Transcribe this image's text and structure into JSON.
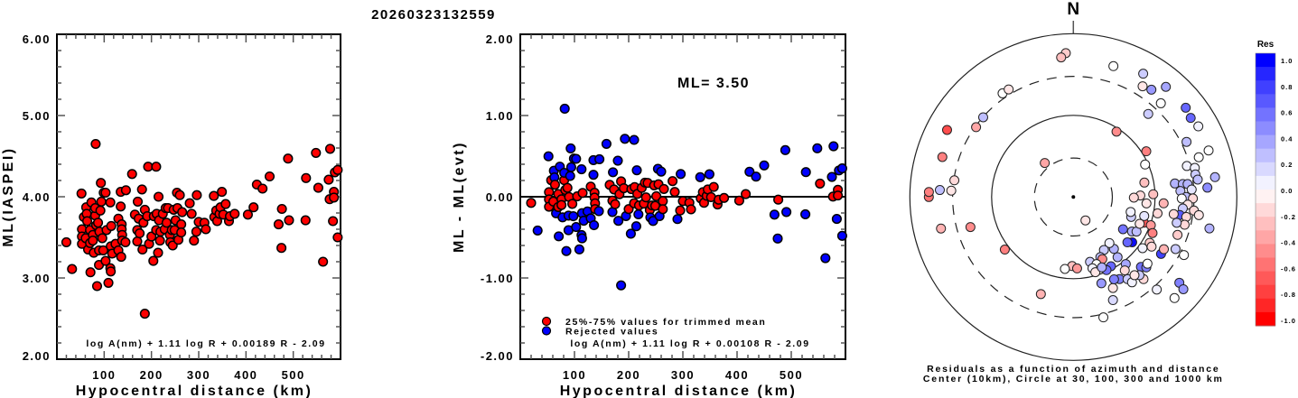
{
  "title": "20260323132559",
  "chart_data": [
    {
      "type": "scatter",
      "title": "",
      "xlabel": "Hypocentral distance (km)",
      "ylabel": "ML(IASPEI)",
      "xlim": [
        0,
        600
      ],
      "ylim": [
        2,
        6
      ],
      "xticks": [
        100,
        200,
        300,
        400,
        500
      ],
      "xtick_labels": [
        "100",
        "200",
        "300",
        "400",
        "500"
      ],
      "yticks": [
        2,
        3,
        4,
        5,
        6
      ],
      "ytick_labels": [
        "2.00",
        "3.00",
        "4.00",
        "5.00",
        "6.00"
      ],
      "formula": "log A(nm) + 1.11 log R + 0.00189 R - 2.09",
      "distance_coef": 0.00189,
      "marker_color": "#ff0000",
      "points_dist_ml": [
        [
          20,
          3.44
        ],
        [
          32,
          3.11
        ],
        [
          52,
          4.04
        ],
        [
          53,
          3.6
        ],
        [
          53,
          3.51
        ],
        [
          53,
          3.42
        ],
        [
          57,
          3.75
        ],
        [
          62,
          3.87
        ],
        [
          63,
          3.79
        ],
        [
          64,
          3.7
        ],
        [
          61,
          3.49
        ],
        [
          66,
          3.35
        ],
        [
          70,
          3.43
        ],
        [
          70,
          3.59
        ],
        [
          71,
          3.07
        ],
        [
          73,
          3.93
        ],
        [
          76,
          3.53
        ],
        [
          76,
          3.46
        ],
        [
          78,
          3.31
        ],
        [
          81,
          3.77
        ],
        [
          81,
          3.86
        ],
        [
          82,
          4.65
        ],
        [
          83,
          3.65
        ],
        [
          85,
          2.9
        ],
        [
          87,
          3.68
        ],
        [
          89,
          3.34
        ],
        [
          89,
          3.16
        ],
        [
          90,
          3.57
        ],
        [
          92,
          3.83
        ],
        [
          93,
          4.17
        ],
        [
          94,
          3.94
        ],
        [
          96,
          3.49
        ],
        [
          98,
          3.34
        ],
        [
          99,
          4.05
        ],
        [
          103,
          4.05
        ],
        [
          103,
          3.21
        ],
        [
          105,
          3.59
        ],
        [
          109,
          2.94
        ],
        [
          113,
          3.93
        ],
        [
          113,
          3.12
        ],
        [
          114,
          3.39
        ],
        [
          114,
          3.08
        ],
        [
          115,
          3.64
        ],
        [
          117,
          3.3
        ],
        [
          124,
          3.42
        ],
        [
          130,
          3.73
        ],
        [
          130,
          3.34
        ],
        [
          135,
          3.88
        ],
        [
          135,
          4.06
        ],
        [
          136,
          3.26
        ],
        [
          137,
          3.66
        ],
        [
          137,
          3.6
        ],
        [
          138,
          3.53
        ],
        [
          138,
          3.46
        ],
        [
          145,
          3.44
        ],
        [
          146,
          4.08
        ],
        [
          159,
          4.28
        ],
        [
          165,
          3.78
        ],
        [
          170,
          3.45
        ],
        [
          170,
          3.59
        ],
        [
          171,
          3.94
        ],
        [
          173,
          3.73
        ],
        [
          175,
          3.55
        ],
        [
          180,
          4.09
        ],
        [
          181,
          3.35
        ],
        [
          183,
          3.68
        ],
        [
          186,
          2.56
        ],
        [
          186,
          3.84
        ],
        [
          191,
          3.76
        ],
        [
          193,
          4.37
        ],
        [
          195,
          3.42
        ],
        [
          200,
          3.51
        ],
        [
          204,
          3.21
        ],
        [
          205,
          3.76
        ],
        [
          210,
          4.37
        ],
        [
          210,
          3.59
        ],
        [
          211,
          3.79
        ],
        [
          214,
          3.31
        ],
        [
          215,
          4.0
        ],
        [
          216,
          3.71
        ],
        [
          218,
          3.46
        ],
        [
          219,
          3.57
        ],
        [
          224,
          3.79
        ],
        [
          228,
          3.6
        ],
        [
          230,
          3.86
        ],
        [
          232,
          3.68
        ],
        [
          235,
          3.86
        ],
        [
          239,
          3.53
        ],
        [
          240,
          3.44
        ],
        [
          243,
          3.59
        ],
        [
          245,
          3.4
        ],
        [
          247,
          3.84
        ],
        [
          249,
          3.59
        ],
        [
          251,
          3.71
        ],
        [
          254,
          4.05
        ],
        [
          255,
          3.86
        ],
        [
          257,
          3.47
        ],
        [
          260,
          4.02
        ],
        [
          263,
          3.66
        ],
        [
          263,
          3.56
        ],
        [
          265,
          3.81
        ],
        [
          281,
          3.92
        ],
        [
          285,
          3.79
        ],
        [
          290,
          3.46
        ],
        [
          295,
          3.57
        ],
        [
          296,
          4.02
        ],
        [
          300,
          3.69
        ],
        [
          312,
          3.68
        ],
        [
          315,
          3.6
        ],
        [
          332,
          4.01
        ],
        [
          333,
          3.75
        ],
        [
          337,
          3.83
        ],
        [
          339,
          3.7
        ],
        [
          344,
          3.79
        ],
        [
          346,
          3.87
        ],
        [
          349,
          4.06
        ],
        [
          352,
          3.78
        ],
        [
          357,
          3.91
        ],
        [
          364,
          3.7
        ],
        [
          366,
          3.76
        ],
        [
          376,
          3.79
        ],
        [
          404,
          3.78
        ],
        [
          416,
          3.87
        ],
        [
          423,
          4.15
        ],
        [
          435,
          4.1
        ],
        [
          450,
          4.25
        ],
        [
          469,
          3.66
        ],
        [
          475,
          3.37
        ],
        [
          476,
          3.85
        ],
        [
          489,
          4.47
        ],
        [
          491,
          3.71
        ],
        [
          526,
          3.71
        ],
        [
          527,
          4.23
        ],
        [
          548,
          4.54
        ],
        [
          553,
          4.11
        ],
        [
          563,
          3.2
        ],
        [
          575,
          4.21
        ],
        [
          578,
          4.59
        ],
        [
          577,
          3.97
        ],
        [
          584,
          3.7
        ],
        [
          586,
          4.06
        ],
        [
          586,
          3.99
        ],
        [
          588,
          4.3
        ],
        [
          594,
          4.33
        ],
        [
          594,
          3.5
        ]
      ]
    },
    {
      "type": "scatter",
      "xlabel": "Hypocentral distance (km)",
      "ylabel": "ML - ML(evt)",
      "xlim": [
        0,
        600
      ],
      "ylim": [
        -2,
        2
      ],
      "xticks": [
        100,
        200,
        300,
        400,
        500
      ],
      "xtick_labels": [
        "100",
        "200",
        "300",
        "400",
        "500"
      ],
      "yticks": [
        -2,
        -1,
        0,
        1,
        2
      ],
      "ytick_labels": [
        "-2.00",
        "-1.00",
        "0.00",
        "1.00",
        "2.00"
      ],
      "ml_label": "ML= 3.50",
      "ml_value": 3.5,
      "formula": "log A(nm) + 1.11 log R + 0.00108 R - 2.09",
      "distance_coef": 0.00108,
      "legend": [
        {
          "label": "25%-75% values for trimmed mean",
          "color": "#ff0000"
        },
        {
          "label": "Rejected values",
          "color": "#0000ff"
        }
      ],
      "legend_position": "bottom-left"
    },
    {
      "type": "scatter",
      "projection": "polar",
      "north_label": "N",
      "caption_line1": "Residuals as a function of azimuth and distance",
      "caption_line2": "Center (10km), Circle at 30, 100, 300 and 1000 km",
      "center_km": 10,
      "rings_km": [
        30,
        100,
        300,
        1000
      ],
      "colorbar": {
        "title": "Res",
        "labels": [
          "1.0",
          "0.8",
          "0.6",
          "0.4",
          "0.2",
          "0.0",
          "-0.2",
          "-0.4",
          "-0.6",
          "-0.8",
          "-1.0"
        ],
        "min": -1.0,
        "max": 1.0,
        "steps": 20,
        "positive_color": "#0000ff",
        "zero_color": "#ffffff",
        "negative_color": "#ff0000"
      },
      "points_az_dist_res": [
        [
          357,
          581,
          -0.2
        ],
        [
          355,
          520,
          -0.25
        ],
        [
          17,
          474,
          0
        ],
        [
          29.5,
          543,
          0.2
        ],
        [
          32,
          397,
          -0.1
        ],
        [
          36,
          421,
          0.4
        ],
        [
          40,
          576,
          0.35
        ],
        [
          43,
          371,
          0
        ],
        [
          42,
          234,
          0.2
        ],
        [
          51.5,
          571,
          0.6
        ],
        [
          56,
          539,
          0.6
        ],
        [
          60.5,
          571,
          0.05
        ],
        [
          64,
          347,
          0.25
        ],
        [
          71,
          562,
          0
        ],
        [
          72.4,
          407,
          0
        ],
        [
          82,
          562,
          0.3
        ],
        [
          86,
          440,
          0.45
        ],
        [
          103,
          511,
          0.3
        ],
        [
          129,
          466,
          0.5
        ],
        [
          130,
          571,
          0.4
        ],
        [
          135,
          562,
          0
        ],
        [
          138,
          335,
          0.05
        ],
        [
          166,
          330,
          0
        ],
        [
          159,
          225,
          0.15
        ],
        [
          156.5,
          164,
          -0.1
        ],
        [
          162,
          129,
          0.4
        ],
        [
          198.5,
          179,
          -0.3
        ],
        [
          232.5,
          114,
          -0.5
        ],
        [
          253.7,
          205,
          -0.45
        ],
        [
          256.6,
          462,
          -0.3
        ],
        [
          270,
          586,
          -0.55
        ],
        [
          272,
          586,
          -0.5
        ],
        [
          273,
          432,
          0.25
        ],
        [
          273,
          313,
          -0.1
        ],
        [
          278,
          295,
          -0.15
        ],
        [
          287,
          474,
          -0.5
        ],
        [
          298,
          562,
          -0.7
        ],
        [
          305.7,
          292,
          -0.35
        ],
        [
          311.5,
          297,
          0.25
        ],
        [
          325.7,
          344,
          0
        ],
        [
          329,
          344,
          -0.1
        ],
        [
          320,
          35,
          -0.35
        ],
        [
          152.6,
          21,
          -0.1
        ],
        [
          33.4,
          91,
          -0.45
        ],
        [
          57.9,
          113,
          -0.5
        ],
        [
          65.6,
          92,
          0
        ],
        [
          78.5,
          77,
          -0.25
        ],
        [
          88,
          95,
          -0.25
        ],
        [
          88.7,
          66,
          -0.15
        ],
        [
          90.6,
          55,
          -0.15
        ],
        [
          95,
          79,
          -0.1
        ],
        [
          94,
          128,
          -0.3
        ],
        [
          101,
          112,
          -0.15
        ],
        [
          110,
          83,
          -0.65
        ],
        [
          110,
          102,
          -0.4
        ],
        [
          114.5,
          116,
          -0.5
        ],
        [
          127.6,
          81,
          0.95
        ],
        [
          130,
          73,
          0.6
        ],
        [
          123,
          53,
          0.55
        ],
        [
          120.5,
          68,
          0.3
        ],
        [
          118.7,
          76,
          0.25
        ],
        [
          109,
          56,
          0.2
        ],
        [
          105,
          79,
          0.1
        ],
        [
          104.6,
          53,
          0.05
        ],
        [
          112,
          75,
          -0.1
        ],
        [
          123,
          190,
          0.75
        ],
        [
          120,
          190,
          -0.3
        ],
        [
          117,
          253,
          0.2
        ],
        [
          117.7,
          337,
          0
        ],
        [
          121,
          123,
          -0.2
        ],
        [
          122.4,
          136,
          -0.15
        ],
        [
          126.5,
          113,
          0.05
        ],
        [
          136,
          155,
          0.55
        ],
        [
          134,
          174,
          0.5
        ],
        [
          132,
          166,
          0
        ],
        [
          142,
          110,
          0.35
        ],
        [
          150.7,
          142,
          0.5
        ],
        [
          153.7,
          133,
          0.5
        ],
        [
          146.6,
          160,
          0.2
        ],
        [
          145.5,
          185,
          0.05
        ],
        [
          139.5,
          210,
          -0.15
        ],
        [
          139.8,
          179,
          0.2
        ],
        [
          142,
          164,
          -0.1
        ],
        [
          151.5,
          92,
          0.6
        ],
        [
          155.6,
          96,
          0.55
        ],
        [
          143.7,
          82,
          0.3
        ],
        [
          142,
          64,
          0.3
        ],
        [
          142,
          52,
          0.05
        ],
        [
          150,
          56,
          0.2
        ],
        [
          155.8,
          64,
          0.25
        ],
        [
          155,
          69,
          -0.45
        ],
        [
          165.6,
          66,
          0.2
        ],
        [
          161,
          74,
          0
        ],
        [
          165,
          80,
          0.05
        ],
        [
          163.7,
          91,
          -0.1
        ],
        [
          158,
          85,
          0.3
        ],
        [
          181,
          70,
          -0.25
        ],
        [
          177,
          75,
          -0.4
        ],
        [
          186.7,
          77,
          0
        ],
        [
          145,
          125,
          -0.15
        ],
        [
          74.7,
          275,
          0.05
        ],
        [
          76.5,
          337,
          0.05
        ],
        [
          79.5,
          330,
          0.2
        ],
        [
          82,
          344,
          0.25
        ],
        [
          82.4,
          179,
          0.3
        ],
        [
          83.2,
          223,
          0.3
        ],
        [
          83.5,
          255,
          0.3
        ],
        [
          86.4,
          282,
          0.1
        ],
        [
          86.8,
          205,
          0.25
        ],
        [
          90,
          240,
          0.25
        ],
        [
          90.7,
          290,
          -0.15
        ],
        [
          90.8,
          212,
          0
        ],
        [
          93.8,
          253,
          -0.1
        ],
        [
          96,
          222,
          0.2
        ],
        [
          99.6,
          209,
          0.65
        ],
        [
          96.4,
          305,
          -0.15
        ],
        [
          98.2,
          356,
          -0.1
        ],
        [
          99.7,
          176,
          -0.15
        ],
        [
          100,
          253,
          -0.15
        ],
        [
          104,
          253,
          -0.15
        ],
        [
          104,
          201,
          0.2
        ],
        [
          110,
          227,
          -0.2
        ]
      ]
    }
  ]
}
